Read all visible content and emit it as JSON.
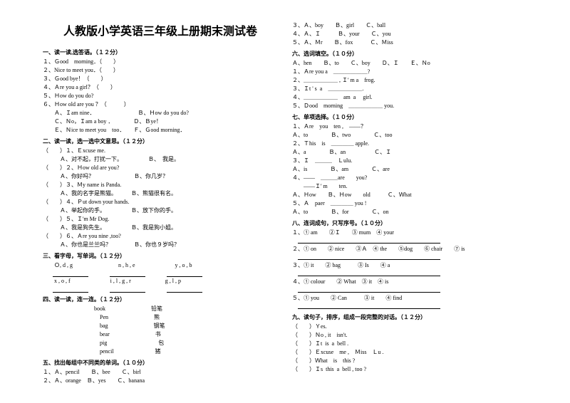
{
  "title": "人教版小学英语三年级上册期末测试卷",
  "left": {
    "s1_head": "一、读一读,选答语。（１２分）",
    "s1": [
      "１、Ｇood　morning．（　　）",
      "２、Nice to meet you．（　　）",
      "３、Ｇood bye！（　　）",
      "４、Ａre you a girl？（　　）",
      "５、Ｈow do you do?",
      "６、Ｈow old are you ？（　　　）",
      "　　Ａ、Ｉam nine．　　　　　　　　Ｂ、Ｈow do you do?",
      "　　Ｃ、Ｎo，Ｉam a boy ．　　　　Ｄ、Ｂye！",
      "　　Ｅ、Ｎice to meet you　too．　　Ｆ、Ｇood morning．"
    ],
    "s2_head": "二、读一读，选一选中文意思。（１２分）",
    "s2": [
      "（　　）１、Ｅxcuse me.",
      "　　　Ａ、对不起，打扰一下。　　　　　Ｂ、　我是。",
      "（　　）２、Ｈow old are you?",
      "　　　Ａ、你好吗？　　　　　　　Ｂ、你几岁？",
      "（　　）３、Ｍy name is Panda.",
      "　　　Ａ、我的名字是熊猫。　　　Ｂ、熊猫很有名。",
      "（　　）４、Ｐut down your hands.",
      "　　　Ａ、举起你的手。　　　　　Ｂ、放下你的手。",
      "（　　）５、Ｉ'm Mr Dog.",
      "　　　Ａ、我是狗先生。　　　　　Ｂ、我是狗小姐。",
      "（　　）６、Ａre you nine ,too?",
      "　　　Ａ、你也是兰兰吗？　　　　Ｂ、你也９岁吗？"
    ],
    "s3_head": "三、看字母，写单词。（１２分）",
    "s3": [
      "　　Ｏ, d , g　　　　　　　　n , h , e　　　　　　　y , o , b",
      "",
      "　　x , o , f　　　　　　　i , l , g , r　　　　　　g , l , p"
    ],
    "s4_head": "四、读一读，连一连。（１２分）",
    "s4": [
      "　　　　　　　　　book　　　　　　　　铅笔",
      "　　　　　　　　　　Pen　　　　　　　　熊",
      "　　　　　　　　　　bag　　　　　　　　钢笔",
      "　　　　　　　　　　bear　　　　　　　　书",
      "　　　　　　　　　　pig　　　　　　　　　包",
      "　　　　　　　　　　pencil　　　　　　　 猪"
    ],
    "s5_head": "五、找出每组中不同类的单词。（１０分）",
    "s5": [
      "１、Ａ、pencil　　Ｂ、bee　　Ｃ、birl",
      "２、Ａ、orange　Ｂ、yes　　Ｃ、banana"
    ]
  },
  "right": {
    "r0": [
      "３、Ａ、boy　　Ｂ、girl　　Ｃ、ball",
      "４、Ａ、Ｉ　　　Ｂ、your　　Ｃ、you",
      "５、Ａ、Ｍr　　Ｂ、fox　　　Ｃ、Ｍiss"
    ],
    "s6_head": "六、选词填空。（１０分）",
    "s6": [
      "Ａ、hen　　Ｂ、to　　Ｃ、boy　　Ｄ、Ｉ　　Ｅ、Ｎo",
      "１、Ａre you a　＿＿＿＿＿＿?",
      "２、＿＿＿＿＿＿ , Ｉ' m a　frog.",
      "３、Ｉt ' s  a　＿＿＿＿＿＿.",
      "４、＿＿＿＿＿＿　am  a　 girl.",
      "５、Ｄood　morning　＿＿＿＿＿＿ you."
    ],
    "s7_head": "七、单项选择。（１０分）",
    "s7": [
      "１、Ａre　you　ten ,　——？",
      "Ａ、to　　　　Ｂ、two　　　　Ｃ、too",
      "２、Ｔhis　is　＿＿＿＿ apple.",
      "Ａ、a　　　　Ｂ、an　　　　　Ｃ、Ｉ",
      "３、Ｉ　＿＿＿　Ｌulu.",
      "Ａ、is　　　　Ｂ、am　　　　Ｃ、are",
      "４、——　＿＿＿are　　you?",
      "　　——Ｉ' m　　ten.",
      "Ａ、Ｈow　　Ｂ、Ｈow　　old　　　Ｃ、Ｗhat",
      "５、Ａ　paer　＿＿＿＿ you !",
      "Ａ、to　　　　Ｂ、for　　　　Ｃ、on"
    ],
    "s8_head": "八、连词成句，只写序号。（１０分）",
    "s8": [
      "１、① am　　②Ｉ　　③ mum　④ your",
      "",
      "２、① on　　② nice　　③Ａ　④ the　　⑤dog　　⑥ chair　　⑦ is",
      "",
      "３、① it　　② bag　　　③ Is　　④ a",
      "",
      "４、① colour　　② What　③ it　④ is",
      "",
      "５、① you　　② Can　　　③ it　　④ find"
    ],
    "s9_head": "九、读句子，排序，组成一段完整的对话。（１２分）",
    "s9": [
      "（　　）Ｙes.",
      "（　　）Ｎo , it　isn't.",
      "（　　）Ｉt  is  a  bell .",
      "（　　）Ｅxcuse　me ,　Ｍiss　Ｌu .",
      "（　　）Ｗhat　is　this ?",
      "（　　）Ｉs  this  a  bell , too ?"
    ]
  }
}
